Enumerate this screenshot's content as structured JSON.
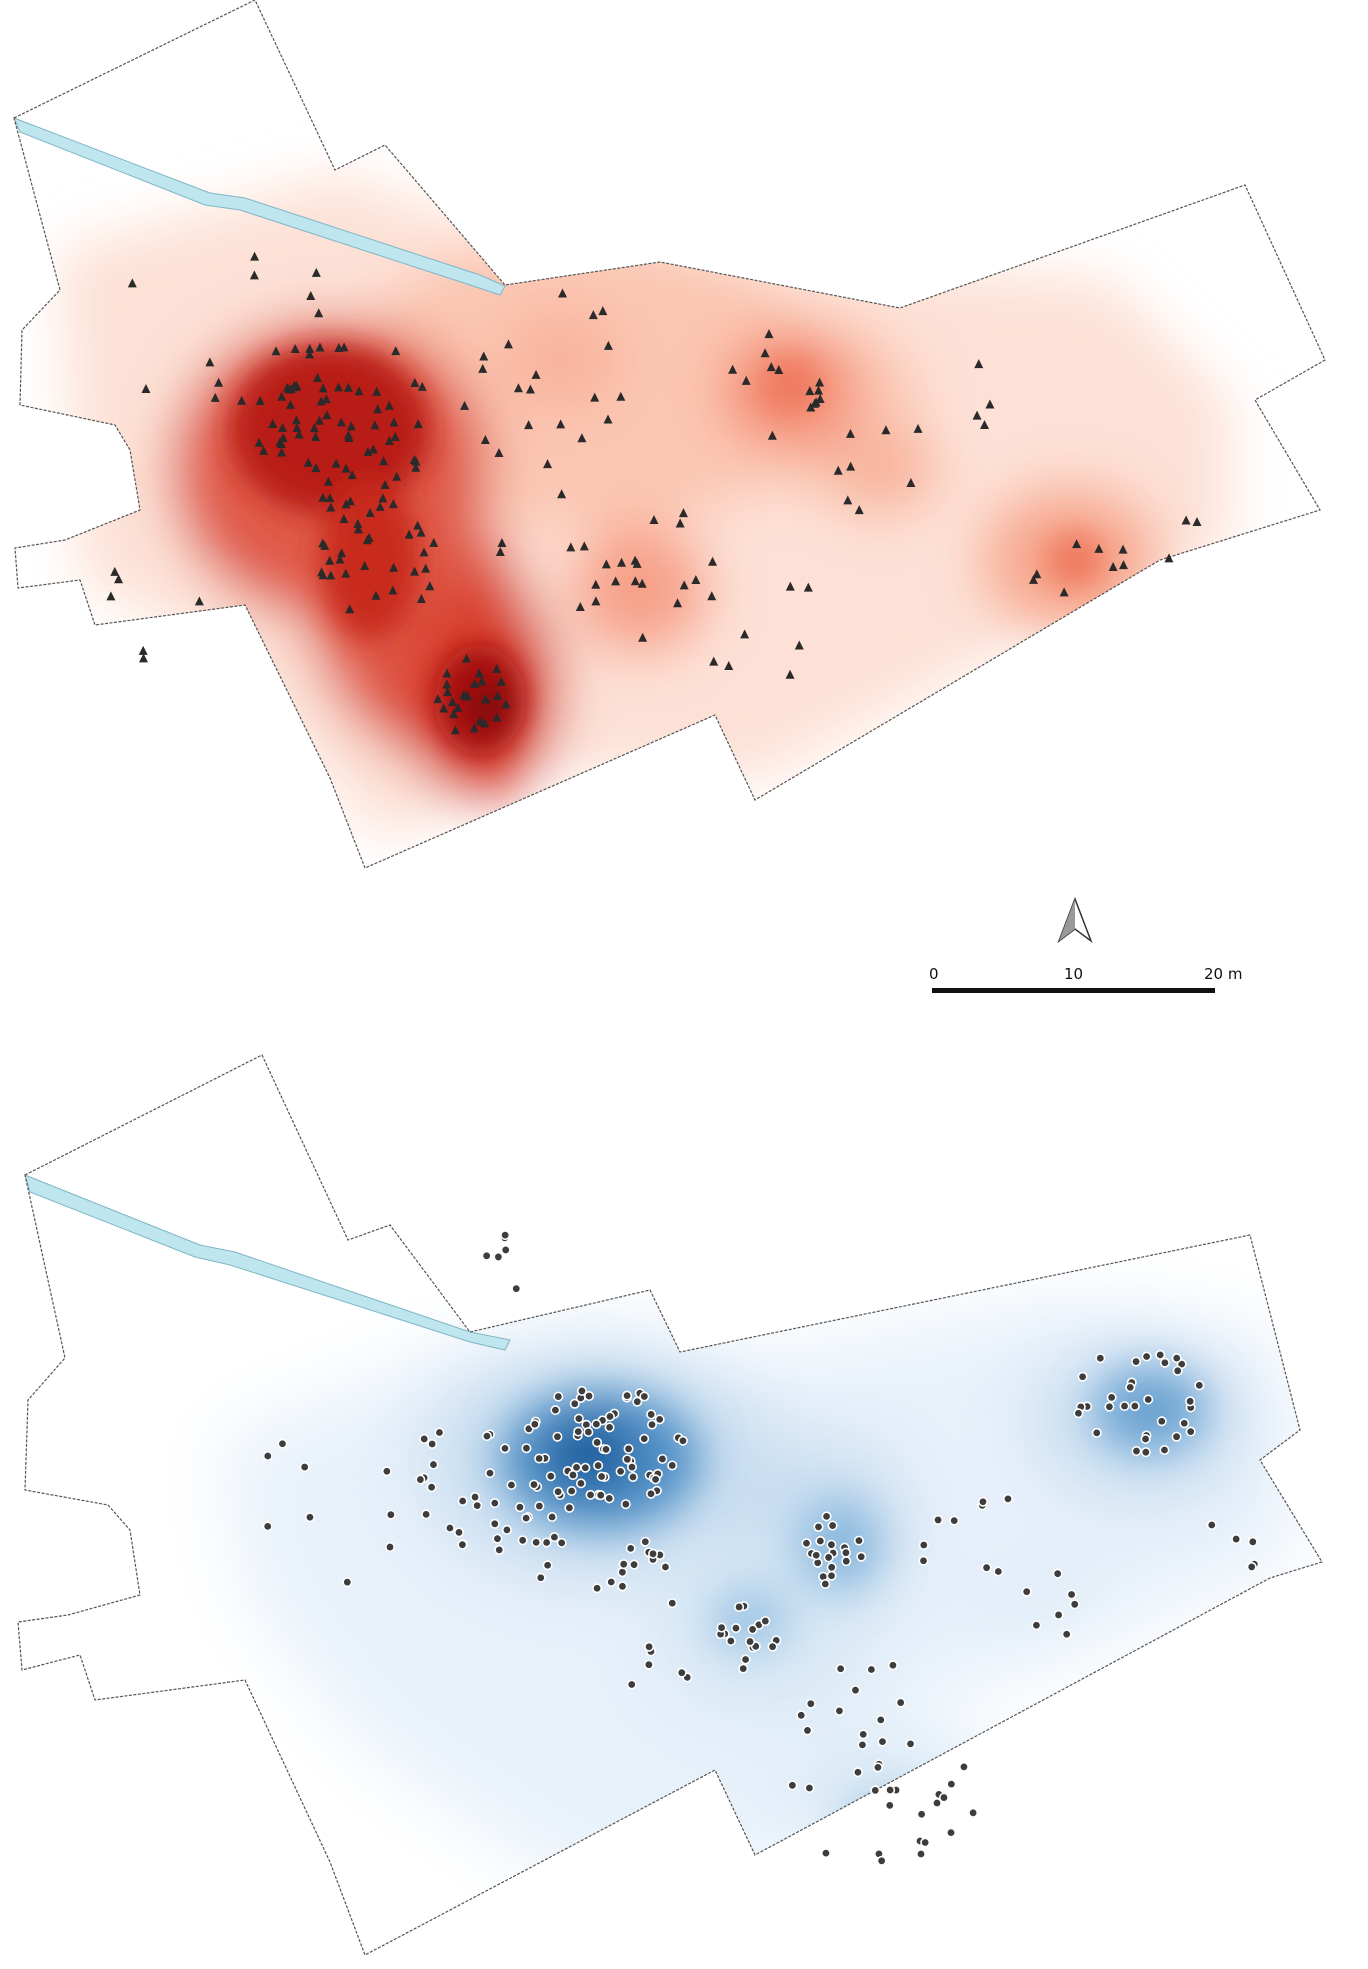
{
  "scale_bar": {
    "tick_start": "0",
    "tick_mid": "10",
    "tick_end": "20 m"
  },
  "north_arrow": {
    "icon": "north-arrow-icon"
  },
  "colors": {
    "heat_red": "#b30d0d",
    "heat_blue": "#1f62a8",
    "stream": "#bfe6ef",
    "boundary": "#555555",
    "points": "#2f2f2f"
  },
  "maps": [
    {
      "name": "red-density-map",
      "point_symbol": "triangle"
    },
    {
      "name": "blue-density-map",
      "point_symbol": "circle"
    }
  ]
}
